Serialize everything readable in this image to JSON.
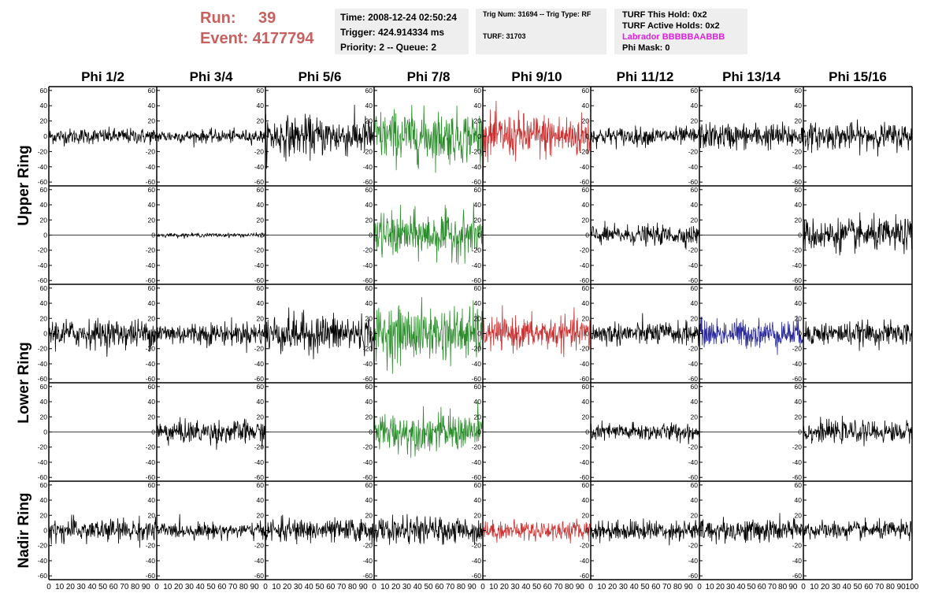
{
  "header": {
    "run_label": "Run:",
    "run_value": "39",
    "event_label": "Event:",
    "event_value": "4177794",
    "time": "Time: 2008-12-24 02:50:24",
    "trigger": "Trigger: 424.914334 ms",
    "priority": "Priority: 2 -- Queue: 2",
    "trig_num": "Trig Num: 31694 -- Trig Type: RF",
    "turf": "TURF: 31703",
    "turf_this_hold": "TURF This Hold: 0x2",
    "turf_active_holds": "TURF Active Holds: 0x2",
    "labrador": "Labrador BBBBBAABBB",
    "phi_mask": "Phi Mask: 0"
  },
  "colors": {
    "header_red": "#c86060",
    "trace_default": "#000000",
    "trace_green": "#2a8c2a",
    "trace_red": "#c83232",
    "trace_blue": "#2a2a9a",
    "labrador": "#e020e0",
    "panel_bg": "#eeeeee"
  },
  "chart_data": {
    "type": "line",
    "columns": [
      "Phi 1/2",
      "Phi 3/4",
      "Phi 5/6",
      "Phi 7/8",
      "Phi 9/10",
      "Phi 11/12",
      "Phi 13/14",
      "Phi 15/16"
    ],
    "row_labels": [
      "Upper Ring",
      "Lower Ring",
      "Nadir Ring"
    ],
    "rows": [
      "upper-a",
      "upper-b",
      "lower-a",
      "lower-b",
      "nadir"
    ],
    "xlim": [
      0,
      100
    ],
    "ylim": [
      -65,
      65
    ],
    "x_ticks": [
      0,
      10,
      20,
      30,
      40,
      50,
      60,
      70,
      80,
      90
    ],
    "y_ticks": [
      -60,
      -40,
      -20,
      0,
      20,
      40,
      60
    ],
    "panels": [
      [
        "black:12",
        "black:10",
        "black:30",
        "green:40",
        "red:35",
        "black:14",
        "black:20",
        "black:20"
      ],
      [
        "black:0",
        "black:3",
        "black:0",
        "green:35",
        "black:0",
        "black:15",
        "black:0",
        "black:25"
      ],
      [
        "black:22",
        "black:18",
        "black:30",
        "green:42",
        "red:25",
        "black:18",
        "blue:22",
        "black:18"
      ],
      [
        "black:0",
        "black:18",
        "black:0",
        "green:30",
        "black:0",
        "black:14",
        "black:0",
        "black:16"
      ],
      [
        "black:18",
        "black:12",
        "black:18",
        "black:20",
        "red:15",
        "black:16",
        "black:18",
        "black:14"
      ]
    ]
  }
}
